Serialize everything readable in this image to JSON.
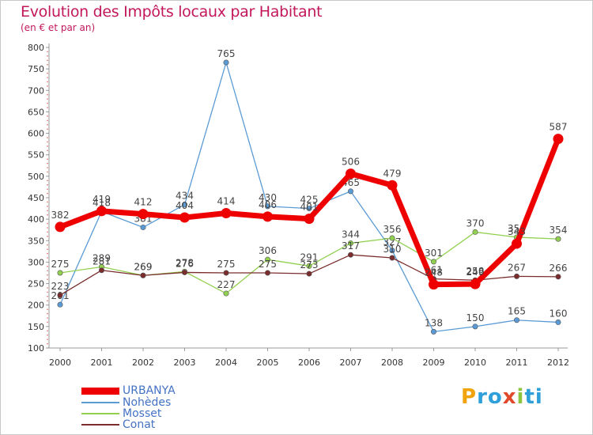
{
  "title": "Evolution des Impôts locaux par Habitant",
  "subtitle": "(en € et par an)",
  "logo": {
    "text": "Proxiti",
    "colors": [
      "#f0a30a",
      "#2e9fd9",
      "#2e9fd9",
      "#e04a2a",
      "#8cc63f",
      "#2e9fd9",
      "#2e9fd9"
    ]
  },
  "chart_data": {
    "type": "line",
    "title": "Evolution des Impôts locaux par Habitant",
    "subtitle": "(en € et par an)",
    "xlabel": "",
    "ylabel": "",
    "ylim": [
      100,
      800
    ],
    "yticks": [
      100,
      150,
      200,
      250,
      300,
      350,
      400,
      450,
      500,
      550,
      600,
      650,
      700,
      750,
      800
    ],
    "grid": false,
    "legend": "bottom-left",
    "categories": [
      "2000",
      "2001",
      "2002",
      "2003",
      "2004",
      "2005",
      "2006",
      "2007",
      "2008",
      "2009",
      "2010",
      "2011",
      "2012"
    ],
    "series": [
      {
        "name": "Nohèdes",
        "color": "#5b9bd5",
        "values": [
          201,
          418,
          381,
          434,
          765,
          430,
          425,
          465,
          327,
          138,
          150,
          165,
          160
        ],
        "labels": [
          "201",
          "418",
          "381",
          "434",
          "765",
          "430",
          "425",
          "465",
          "327",
          "138",
          "150",
          "165",
          "160"
        ]
      },
      {
        "name": "Mosset",
        "color": "#92d050",
        "values": [
          275,
          289,
          269,
          278,
          227,
          306,
          291,
          344,
          356,
          301,
          370,
          358,
          354
        ],
        "labels": [
          "275",
          "289",
          "269",
          "278",
          "227",
          "306",
          "291",
          "344",
          "356",
          "301",
          "370",
          "358",
          "354"
        ]
      },
      {
        "name": "Conat",
        "color": "#7b2c2c",
        "values": [
          223,
          281,
          269,
          276,
          275,
          275,
          273,
          317,
          310,
          261,
          258,
          267,
          266
        ],
        "labels": [
          "223",
          "281",
          "269",
          "276",
          "275",
          "275",
          "273",
          "317",
          "310",
          "261",
          "258",
          "267",
          "266"
        ]
      },
      {
        "name": "URBANYA",
        "color": "#ee0000",
        "values": [
          382,
          419,
          412,
          404,
          414,
          406,
          401,
          506,
          479,
          248,
          249,
          343,
          587
        ],
        "labels": [
          "382",
          "419",
          "412",
          "404",
          "414",
          "406",
          "401",
          "506",
          "479",
          "248",
          "249",
          "343",
          "587"
        ]
      }
    ]
  },
  "legend": {
    "items": [
      {
        "label": "URBANYA",
        "color": "#ee0000"
      },
      {
        "label": "Nohèdes",
        "color": "#5b9bd5"
      },
      {
        "label": "Mosset",
        "color": "#92d050"
      },
      {
        "label": "Conat",
        "color": "#7b2c2c"
      }
    ]
  }
}
